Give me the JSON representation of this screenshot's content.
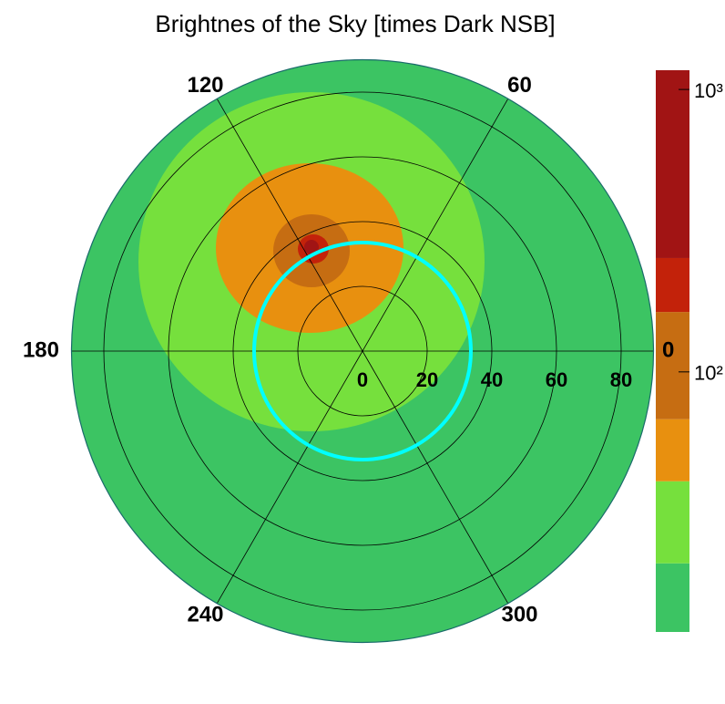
{
  "chart_data": {
    "type": "polar_contour",
    "title": "Brightnes of the Sky [times Dark NSB]",
    "theta_ticks": [
      0,
      60,
      120,
      180,
      240,
      300
    ],
    "rlim": [
      0,
      90
    ],
    "rticks": [
      0,
      20,
      40,
      60,
      80
    ],
    "zlim": [
      12,
      1170
    ],
    "zscale": "log",
    "zticks": [
      {
        "value": 100,
        "label": "10²"
      },
      {
        "value": 1000,
        "label": "10³"
      }
    ],
    "levels": [
      12,
      21,
      41,
      68,
      163,
      253,
      1170
    ],
    "colors": [
      "#3cc463",
      "#76e03d",
      "#e8900f",
      "#c66d12",
      "#c3220a",
      "#a11414"
    ],
    "grid": true
  }
}
